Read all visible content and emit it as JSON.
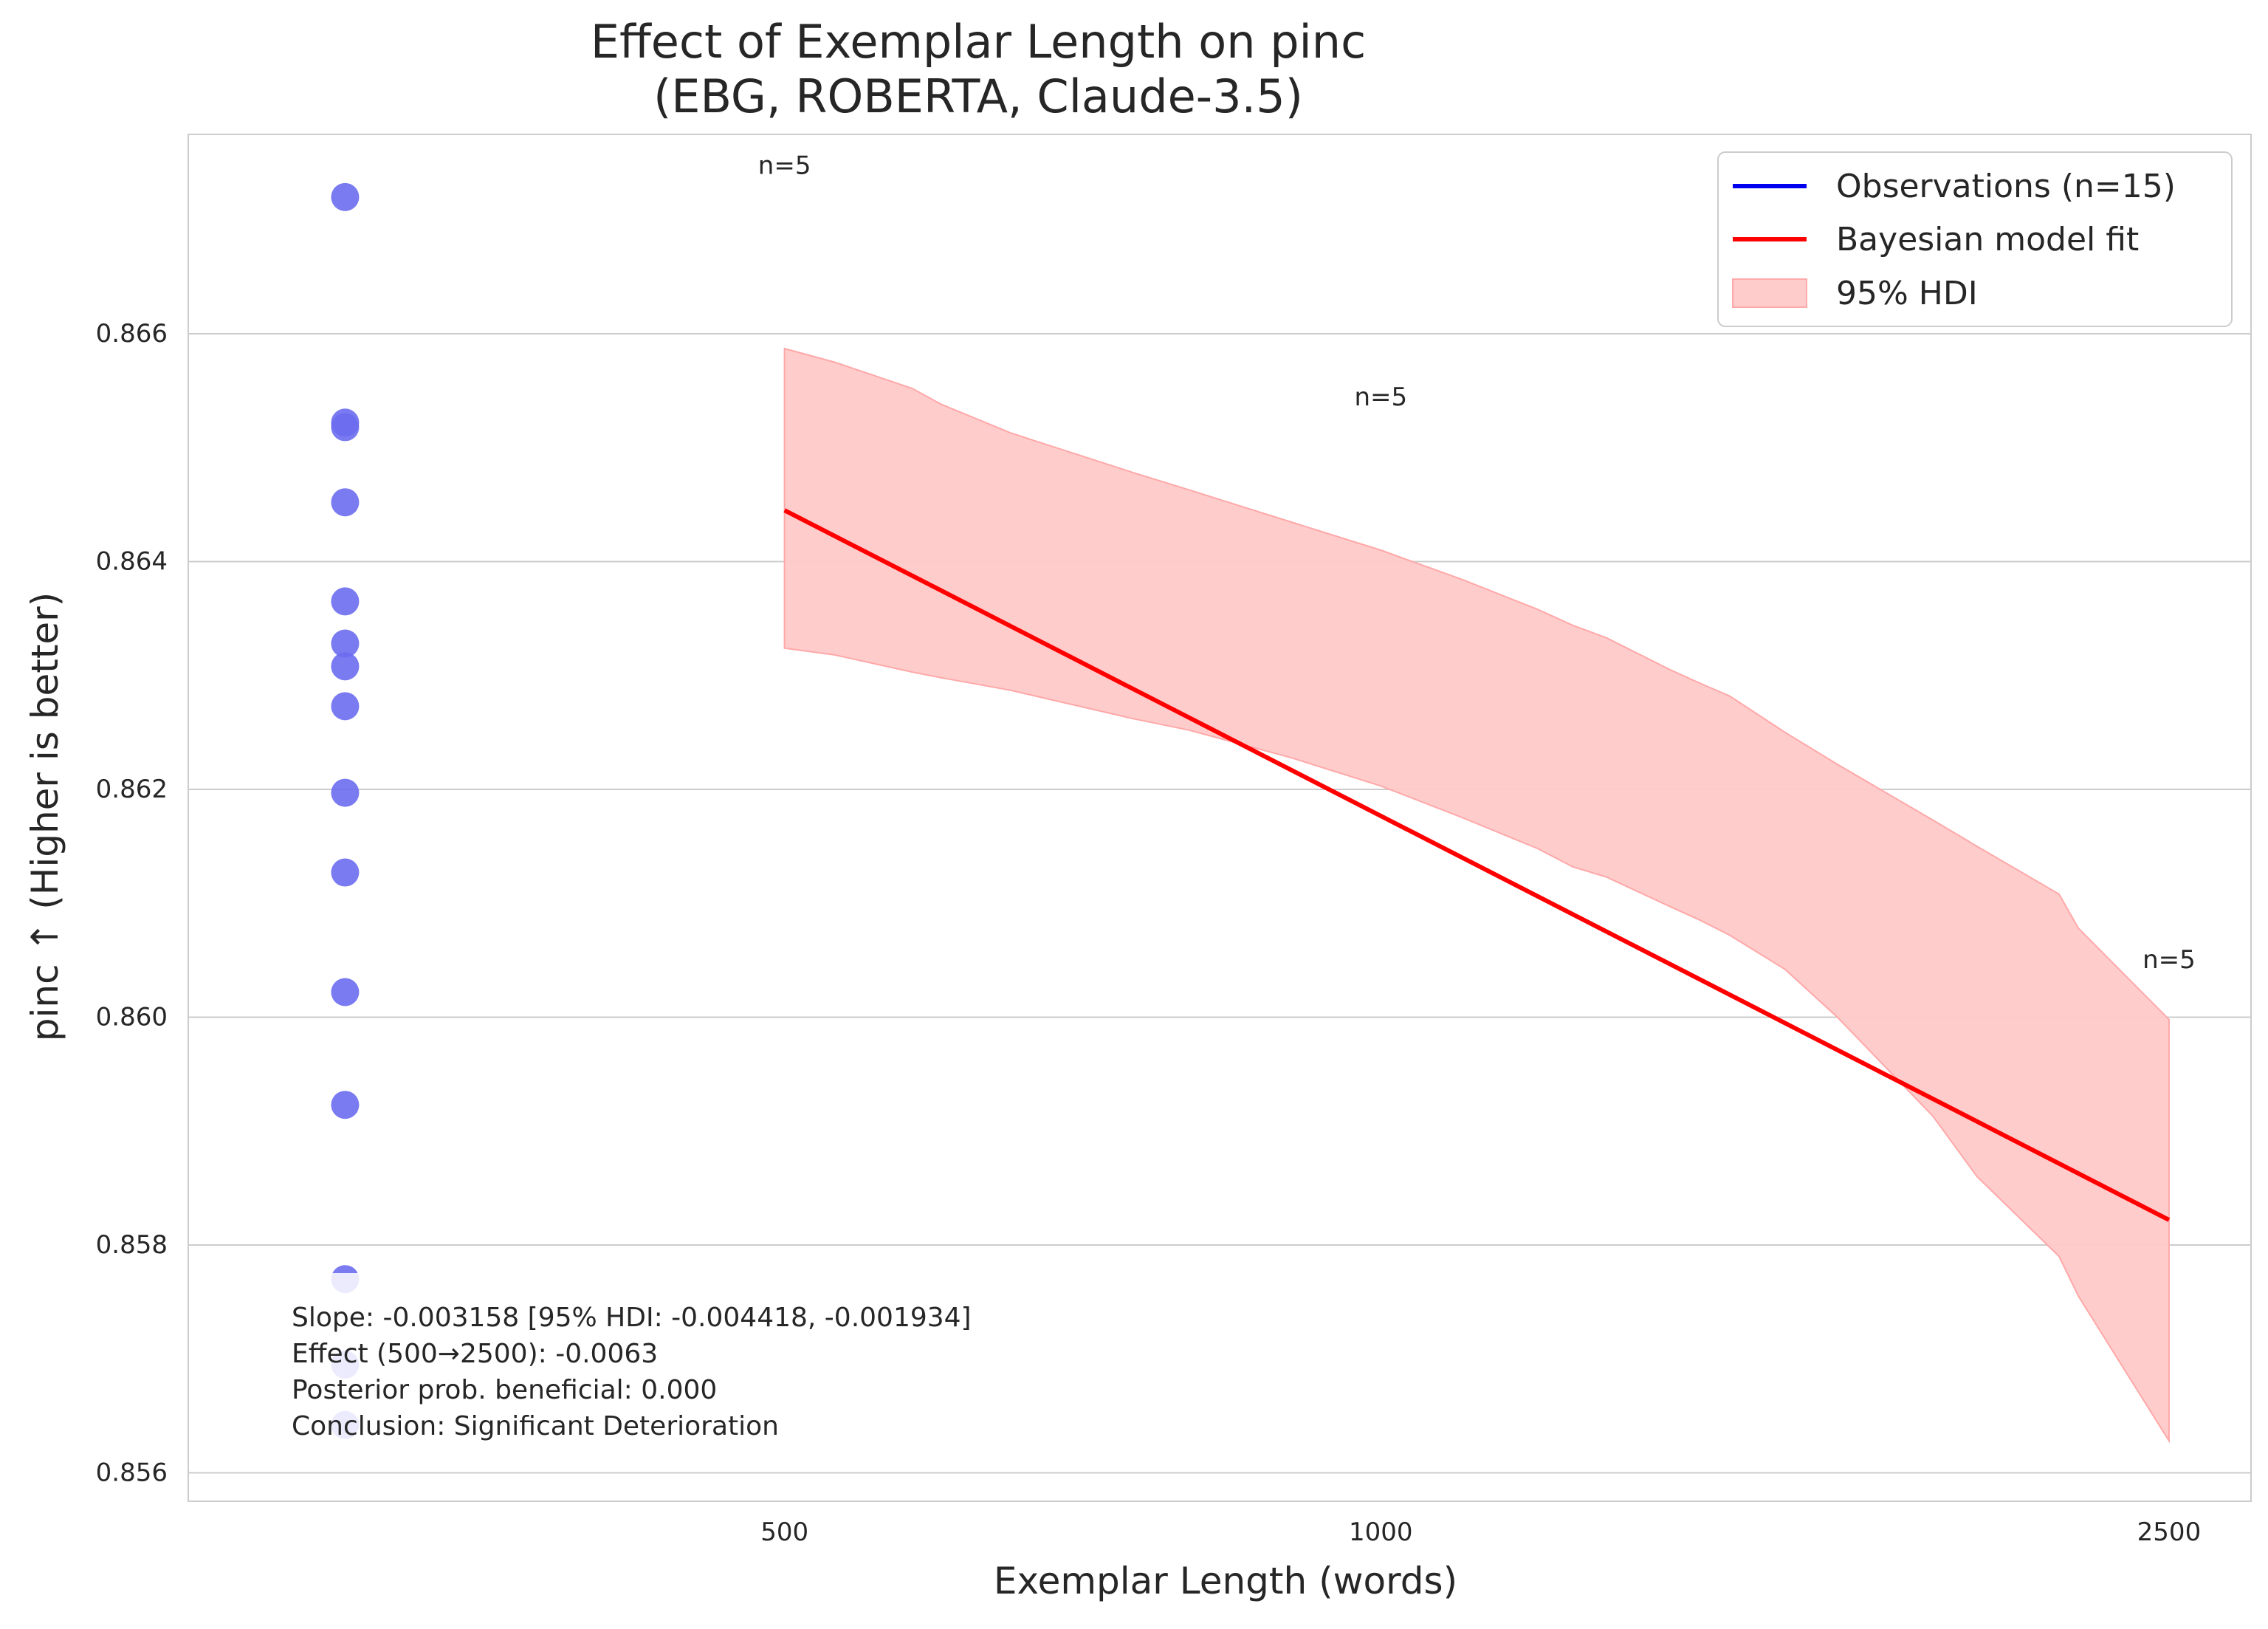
{
  "chart_data": {
    "type": "scatter",
    "title": "Effect of Exemplar Length on pinc",
    "subtitle": "(EBG, ROBERTA, Claude-3.5)",
    "xlabel": "Exemplar Length (words)",
    "ylabel": "pinc ↑ (Higher is better)",
    "x_scale": "log",
    "xlim": [
      250,
      2750
    ],
    "ylim": [
      0.85575,
      0.86775
    ],
    "x_ticks": [
      500,
      1000,
      2500
    ],
    "x_tick_labels": [
      "500",
      "1000",
      "2500"
    ],
    "y_ticks": [
      0.856,
      0.858,
      0.86,
      0.862,
      0.864,
      0.866
    ],
    "y_tick_labels": [
      "0.856",
      "0.858",
      "0.860",
      "0.862",
      "0.864",
      "0.866"
    ],
    "grid": "y",
    "legend_position": "top-right",
    "legend": [
      {
        "label": "Observations (n=15)",
        "kind": "line",
        "color": "#0000ee"
      },
      {
        "label": "Bayesian model fit",
        "kind": "line",
        "color": "#ff0000"
      },
      {
        "label": "95% HDI",
        "kind": "patch",
        "color": "#ffcccc"
      }
    ],
    "colors": {
      "points": "#6b6bf0",
      "fit": "#ff0000",
      "hdi_fill": "#ffc9c9",
      "hdi_edge": "#ffa8a8"
    },
    "observations_x": 300,
    "observations": [
      0.8672,
      0.86522,
      0.86518,
      0.86452,
      0.86365,
      0.86328,
      0.86308,
      0.86273,
      0.86197,
      0.86127,
      0.86022,
      0.85923,
      0.8577,
      0.85695,
      0.85642
    ],
    "count_annotations": [
      {
        "text": "n=5",
        "x": 500,
        "y": 0.86748
      },
      {
        "text": "n=5",
        "x": 1000,
        "y": 0.86545
      },
      {
        "text": "n=5",
        "x": 2500,
        "y": 0.86051
      }
    ],
    "fit": {
      "x": [
        500,
        2500
      ],
      "y": [
        0.86445,
        0.85822
      ]
    },
    "hdi": {
      "x": [
        500,
        530,
        580,
        600,
        650,
        750,
        800,
        900,
        1000,
        1100,
        1200,
        1250,
        1300,
        1400,
        1450,
        1500,
        1600,
        1700,
        1900,
        2000,
        2200,
        2250,
        2500
      ],
      "upper": [
        0.86587,
        0.86575,
        0.86552,
        0.86538,
        0.86513,
        0.86478,
        0.86463,
        0.86435,
        0.8641,
        0.86384,
        0.86358,
        0.86344,
        0.86333,
        0.86305,
        0.86293,
        0.86282,
        0.8625,
        0.86222,
        0.86173,
        0.8615,
        0.86108,
        0.86078,
        0.85998
      ],
      "lower": [
        0.86324,
        0.86318,
        0.86303,
        0.86298,
        0.86287,
        0.86262,
        0.86252,
        0.86228,
        0.86203,
        0.86175,
        0.86148,
        0.86132,
        0.86123,
        0.86097,
        0.86085,
        0.86072,
        0.86042,
        0.86,
        0.85913,
        0.8586,
        0.8579,
        0.85755,
        0.85628
      ]
    },
    "stats_box": [
      "Slope: -0.003158 [95% HDI: -0.004418, -0.001934]",
      "Effect (500→2500): -0.0063",
      "Posterior prob. beneficial: 0.000",
      "Conclusion: Significant Deterioration"
    ]
  }
}
